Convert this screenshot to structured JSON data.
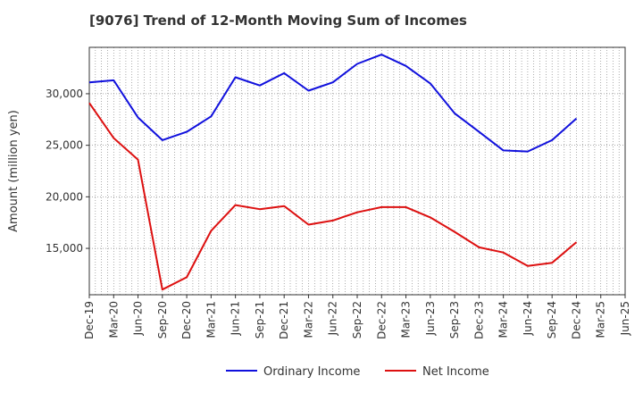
{
  "chart_data": {
    "type": "line",
    "title": "[9076]  Trend of 12-Month Moving Sum of Incomes",
    "xlabel": "",
    "ylabel": "Amount (million yen)",
    "ylim": [
      10500,
      34500
    ],
    "yticks": [
      15000,
      20000,
      25000,
      30000
    ],
    "ytick_labels": [
      "15,000",
      "20,000",
      "25,000",
      "30,000"
    ],
    "grid": true,
    "legend_position": "bottom-center",
    "categories": [
      "Dec-19",
      "Mar-20",
      "Jun-20",
      "Sep-20",
      "Dec-20",
      "Mar-21",
      "Jun-21",
      "Sep-21",
      "Dec-21",
      "Mar-22",
      "Jun-22",
      "Sep-22",
      "Dec-22",
      "Mar-23",
      "Jun-23",
      "Sep-23",
      "Dec-23",
      "Mar-24",
      "Jun-24",
      "Sep-24",
      "Dec-24",
      "Mar-25",
      "Jun-25"
    ],
    "series": [
      {
        "name": "Ordinary Income",
        "color": "#1010dd",
        "values": [
          31100,
          31300,
          27700,
          25500,
          26300,
          27800,
          31600,
          30800,
          32000,
          30300,
          31100,
          32900,
          33800,
          32700,
          31000,
          28100,
          26300,
          24500,
          24400,
          25500,
          27600,
          null,
          null
        ]
      },
      {
        "name": "Net Income",
        "color": "#dd1010",
        "values": [
          29100,
          25700,
          23600,
          11000,
          12200,
          16700,
          19200,
          18800,
          19100,
          17300,
          17700,
          18500,
          19000,
          19000,
          18000,
          16600,
          15100,
          14600,
          13300,
          13600,
          15600,
          null,
          null
        ]
      }
    ]
  }
}
